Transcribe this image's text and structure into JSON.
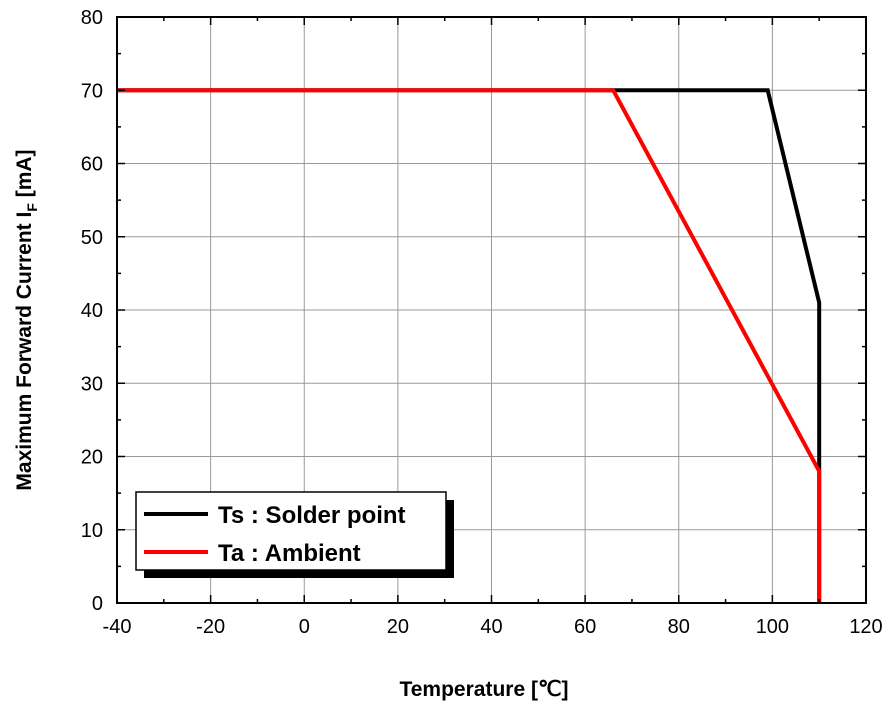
{
  "chart_data": {
    "type": "line",
    "title": "",
    "xlabel": "Temperature [℃]",
    "ylabel_main": "Maximum Forward Current  I",
    "ylabel_sub": "F",
    "ylabel_tail": " [mA]",
    "xlim": [
      -40,
      120
    ],
    "ylim": [
      0,
      80
    ],
    "xticks": [
      -40,
      -20,
      0,
      20,
      40,
      60,
      80,
      100,
      120
    ],
    "yticks": [
      0,
      10,
      20,
      30,
      40,
      50,
      60,
      70,
      80
    ],
    "grid": true,
    "legend_position": "bottom-left",
    "series": [
      {
        "name": "Ts : Solder point",
        "color": "#000000",
        "x": [
          -40,
          99,
          110,
          110
        ],
        "y": [
          70,
          70,
          41,
          0
        ]
      },
      {
        "name": "Ta : Ambient",
        "color": "#ff0000",
        "x": [
          -40,
          66,
          110,
          110
        ],
        "y": [
          70,
          70,
          18,
          0
        ]
      }
    ]
  }
}
